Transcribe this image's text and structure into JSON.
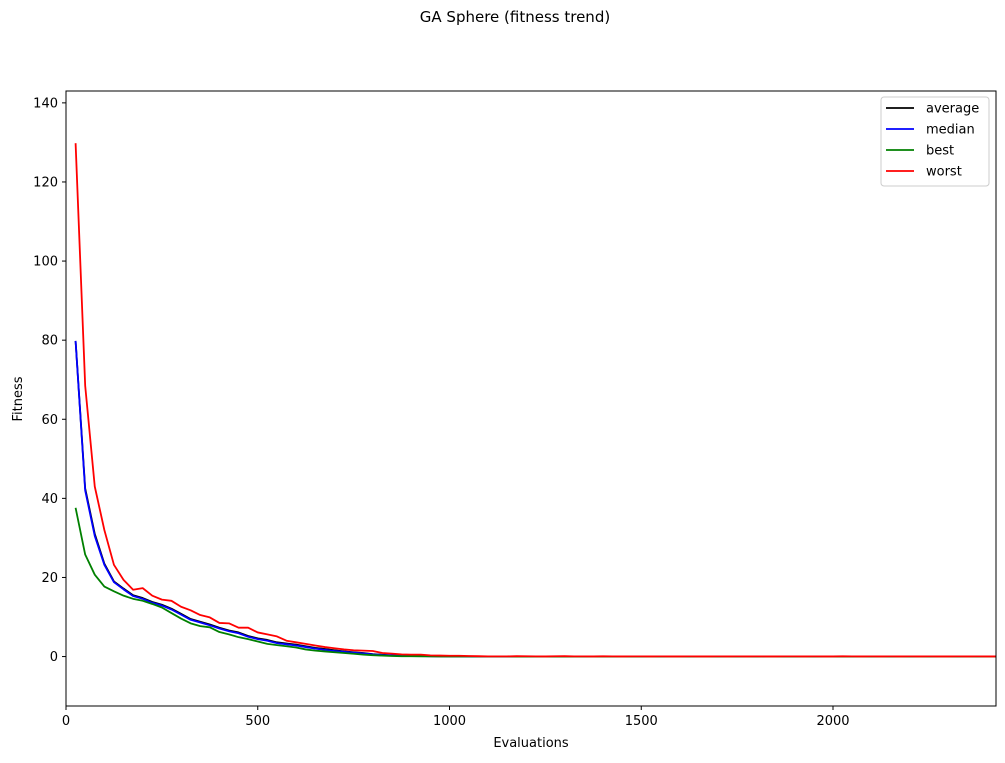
{
  "chart_data": {
    "type": "line",
    "title": "GA Sphere (fitness trend)",
    "xlabel": "Evaluations",
    "ylabel": "Fitness",
    "xlim": [
      0,
      2425
    ],
    "ylim": [
      -12.5,
      143
    ],
    "xticks": [
      0,
      500,
      1000,
      1500,
      2000
    ],
    "yticks": [
      0,
      20,
      40,
      60,
      80,
      100,
      120,
      140
    ],
    "grid": false,
    "legend": "top-right",
    "x": [
      25,
      50,
      75,
      100,
      125,
      150,
      175,
      200,
      225,
      250,
      275,
      300,
      325,
      350,
      375,
      400,
      425,
      450,
      475,
      500,
      525,
      550,
      575,
      600,
      625,
      650,
      675,
      700,
      725,
      750,
      775,
      800,
      825,
      850,
      875,
      900,
      925,
      950,
      975,
      1000,
      1025,
      1050,
      1075,
      1100,
      1125,
      1150,
      1175,
      1200,
      1225,
      1250,
      1275,
      1300,
      1325,
      1350,
      1375,
      1400,
      1425,
      1450,
      1475,
      1500,
      1525,
      1550,
      1575,
      1600,
      1625,
      1650,
      1675,
      1700,
      1725,
      1750,
      1775,
      1800,
      1825,
      1850,
      1875,
      1900,
      1925,
      1950,
      1975,
      2000,
      2025,
      2050,
      2075,
      2100,
      2125,
      2150,
      2175,
      2200,
      2225,
      2250,
      2275,
      2300,
      2325,
      2350,
      2375,
      2400,
      2425
    ],
    "series": [
      {
        "name": "average",
        "color": "#000000",
        "values": [
          79.8,
          42.5,
          31,
          23.5,
          19,
          17.2,
          15.5,
          14.8,
          13.8,
          13.1,
          12.1,
          10.8,
          9.5,
          8.8,
          8.1,
          7.3,
          6.6,
          6.1,
          5.2,
          4.6,
          4.2,
          3.6,
          3.3,
          3.0,
          2.6,
          2.2,
          1.9,
          1.6,
          1.3,
          1.1,
          0.9,
          0.6,
          0.45,
          0.3,
          0.25,
          0.2,
          0.15,
          0.1,
          0.08,
          0.06,
          0.05,
          0.04,
          0.03,
          0.03,
          0.02,
          0.02,
          0.02,
          0.02,
          0.01,
          0.01,
          0.01,
          0.01,
          0.01,
          0.01,
          0.01,
          0.01,
          0,
          0,
          0,
          0,
          0,
          0,
          0,
          0,
          0,
          0,
          0,
          0,
          0,
          0,
          0,
          0,
          0,
          0,
          0,
          0,
          0,
          0,
          0,
          0,
          0,
          0,
          0,
          0,
          0,
          0,
          0,
          0,
          0,
          0,
          0,
          0,
          0,
          0,
          0,
          0,
          0
        ]
      },
      {
        "name": "median",
        "color": "#0000ff",
        "values": [
          79.8,
          42,
          30.5,
          23.2,
          18.8,
          17,
          15.3,
          14.6,
          13.6,
          12.9,
          11.9,
          10.6,
          9.3,
          8.6,
          7.9,
          7.1,
          6.4,
          5.9,
          5.0,
          4.4,
          4.0,
          3.4,
          3.1,
          2.8,
          2.4,
          2.0,
          1.7,
          1.4,
          1.2,
          1.0,
          0.8,
          0.55,
          0.4,
          0.28,
          0.22,
          0.18,
          0.13,
          0.09,
          0.07,
          0.05,
          0.04,
          0.03,
          0.02,
          0.02,
          0.02,
          0.01,
          0.01,
          0.01,
          0.01,
          0.01,
          0.01,
          0.01,
          0.01,
          0.01,
          0,
          0,
          0,
          0,
          0,
          0,
          0,
          0,
          0,
          0,
          0,
          0,
          0,
          0,
          0,
          0,
          0,
          0,
          0,
          0,
          0,
          0,
          0,
          0,
          0,
          0,
          0,
          0,
          0,
          0,
          0,
          0,
          0,
          0,
          0,
          0,
          0,
          0,
          0,
          0,
          0,
          0,
          0
        ]
      },
      {
        "name": "best",
        "color": "#008000",
        "values": [
          37.6,
          25.8,
          20.7,
          17.7,
          16.5,
          15.4,
          14.6,
          14.1,
          13.3,
          12.4,
          11,
          9.6,
          8.4,
          7.7,
          7.4,
          6.2,
          5.6,
          4.9,
          4.4,
          3.8,
          3.2,
          2.9,
          2.6,
          2.3,
          1.8,
          1.5,
          1.3,
          1.1,
          0.9,
          0.7,
          0.5,
          0.35,
          0.25,
          0.15,
          0.1,
          0.08,
          0.06,
          0.04,
          0.03,
          0.02,
          0.02,
          0.01,
          0.01,
          0.01,
          0.01,
          0.01,
          0,
          0,
          0,
          0,
          0,
          0,
          0,
          0,
          0,
          0,
          0,
          0,
          0,
          0,
          0,
          0,
          0,
          0,
          0,
          0,
          0,
          0,
          0,
          0,
          0,
          0,
          0,
          0,
          0,
          0,
          0,
          0,
          0,
          0,
          0,
          0,
          0,
          0,
          0,
          0,
          0,
          0,
          0,
          0,
          0,
          0,
          0,
          0,
          0,
          0,
          0
        ]
      },
      {
        "name": "worst",
        "color": "#ff0000",
        "values": [
          129.8,
          68.5,
          43,
          32,
          23.2,
          19.4,
          16.9,
          17.3,
          15.4,
          14.4,
          14.1,
          12.6,
          11.7,
          10.5,
          9.9,
          8.5,
          8.4,
          7.3,
          7.3,
          6.1,
          5.6,
          5.1,
          4.0,
          3.6,
          3.2,
          2.8,
          2.4,
          2.1,
          1.8,
          1.6,
          1.5,
          1.4,
          0.9,
          0.75,
          0.55,
          0.5,
          0.5,
          0.3,
          0.25,
          0.2,
          0.2,
          0.15,
          0.1,
          0.05,
          0.05,
          0.05,
          0.1,
          0.08,
          0.05,
          0.03,
          0.08,
          0.1,
          0.05,
          0.05,
          0.03,
          0.08,
          0.05,
          0.03,
          0.05,
          0.05,
          0.03,
          0.05,
          0.03,
          0.03,
          0.05,
          0.03,
          0.03,
          0.05,
          0.03,
          0.05,
          0.03,
          0.05,
          0.03,
          0.03,
          0.05,
          0.05,
          0.03,
          0.05,
          0.03,
          0.03,
          0.08,
          0.05,
          0.03,
          0.05,
          0.03,
          0.05,
          0.03,
          0.05,
          0.03,
          0.05,
          0.03,
          0.03,
          0.05,
          0.03,
          0.05,
          0.03,
          0.03
        ]
      }
    ]
  }
}
